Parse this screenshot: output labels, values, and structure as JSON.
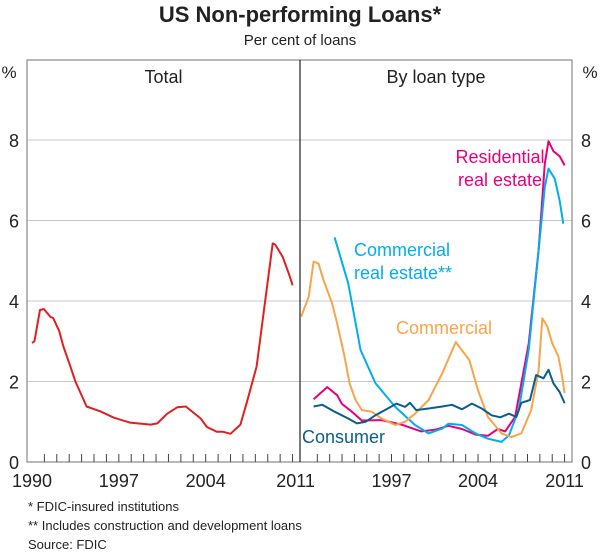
{
  "chart_data": {
    "title": "US Non-performing Loans*",
    "subtitle": "Per cent of loans",
    "type": "line",
    "unit_label": "%",
    "ylim": [
      0,
      9
    ],
    "yticks": [
      0,
      2,
      4,
      6,
      8
    ],
    "xlim": [
      1989.6,
      2011.6
    ],
    "xticks": [
      1990,
      1997,
      2004,
      2011
    ],
    "grid": true,
    "panels": [
      {
        "title": "Total",
        "series": [
          {
            "color": "#e0201f",
            "x": [
              1990.0,
              1990.2,
              1990.65,
              1990.97,
              1991.5,
              1991.7,
              1992.2,
              1992.5,
              1993.1,
              1993.5,
              1994.4,
              1995.5,
              1996.6,
              1997.9,
              1999.55,
              2000.1,
              2000.9,
              2001.7,
              2002.4,
              2003.6,
              2004.1,
              2004.9,
              2005.4,
              2006.0,
              2006.8,
              2007.3,
              2008.1,
              2008.7,
              2009.4,
              2009.6,
              2010.2,
              2010.7,
              2011.0
            ],
            "y": [
              2.96,
              3.0,
              3.78,
              3.8,
              3.6,
              3.58,
              3.25,
              2.9,
              2.37,
              2.0,
              1.38,
              1.26,
              1.1,
              0.98,
              0.93,
              0.96,
              1.2,
              1.36,
              1.38,
              1.08,
              0.87,
              0.75,
              0.75,
              0.7,
              0.93,
              1.46,
              2.37,
              3.78,
              5.43,
              5.4,
              5.1,
              4.68,
              4.39
            ]
          }
        ]
      },
      {
        "title": "By loan type",
        "series": [
          {
            "name": "Residential real estate",
            "label_lines": [
              "Residential",
              "real estate"
            ],
            "color": "#e6007e",
            "x": [
              1990.7,
              1991.8,
              1992.6,
              1993.0,
              1993.8,
              1994.6,
              1996.2,
              1997.8,
              1999.4,
              2000.5,
              2001.6,
              2002.7,
              2003.8,
              2004.8,
              2005.6,
              2006.2,
              2007.0,
              2008.1,
              2008.9,
              2009.4,
              2009.7,
              2010.1,
              2010.6,
              2011.0
            ],
            "y": [
              1.56,
              1.86,
              1.66,
              1.44,
              1.25,
              1.03,
              1.04,
              0.93,
              0.76,
              0.8,
              0.9,
              0.82,
              0.68,
              0.65,
              0.82,
              0.76,
              1.12,
              2.94,
              5.26,
              7.41,
              7.97,
              7.72,
              7.6,
              7.37
            ]
          },
          {
            "name": "Commercial real estate**",
            "label_lines": [
              "Commercial",
              "real estate**"
            ],
            "color": "#00aeef",
            "x": [
              1992.4,
              1993.5,
              1994.5,
              1995.7,
              1997.3,
              1998.9,
              2000.0,
              2001.1,
              2001.6,
              2002.7,
              2003.8,
              2004.8,
              2005.9,
              2006.5,
              2007.3,
              2008.1,
              2008.9,
              2009.4,
              2009.7,
              2010.2,
              2010.6,
              2010.9
            ],
            "y": [
              5.58,
              4.44,
              2.78,
              1.96,
              1.37,
              0.92,
              0.71,
              0.83,
              0.95,
              0.92,
              0.71,
              0.58,
              0.5,
              0.66,
              1.3,
              2.78,
              5.26,
              6.83,
              7.29,
              7.04,
              6.5,
              5.92
            ]
          },
          {
            "name": "Commercial",
            "label_lines": [
              "Commercial"
            ],
            "color": "#f7a54a",
            "x": [
              1989.7,
              1990.3,
              1990.7,
              1991.1,
              1991.5,
              1992.2,
              1992.6,
              1993.2,
              1993.6,
              1994.1,
              1994.6,
              1995.4,
              1996.2,
              1997.3,
              1998.1,
              1998.9,
              2000.0,
              2001.1,
              2002.2,
              2003.3,
              2004.0,
              2004.8,
              2005.9,
              2006.7,
              2007.5,
              2008.3,
              2008.9,
              2009.2,
              2009.6,
              2010.0,
              2010.5,
              2010.8,
              2011.0
            ],
            "y": [
              3.61,
              4.11,
              4.98,
              4.93,
              4.52,
              3.94,
              3.45,
              2.62,
              1.96,
              1.54,
              1.29,
              1.25,
              1.08,
              0.92,
              1.0,
              1.2,
              1.54,
              2.2,
              2.98,
              2.53,
              1.78,
              1.12,
              0.71,
              0.62,
              0.71,
              1.29,
              2.28,
              3.57,
              3.37,
              2.95,
              2.62,
              2.13,
              1.71
            ]
          },
          {
            "name": "Consumer",
            "label_lines": [
              "Consumer"
            ],
            "color": "#0a5e8c",
            "x": [
              1990.7,
              1991.4,
              1992.4,
              1993.5,
              1994.2,
              1994.9,
              1995.7,
              1996.7,
              1997.4,
              1998.1,
              1998.5,
              1999.0,
              2000.0,
              2001.1,
              2001.9,
              2002.7,
              2003.5,
              2004.3,
              2005.1,
              2005.8,
              2006.5,
              2007.1,
              2007.5,
              2008.2,
              2008.7,
              2009.3,
              2009.7,
              2010.1,
              2010.6,
              2011.0
            ],
            "y": [
              1.38,
              1.42,
              1.25,
              1.08,
              0.96,
              1.0,
              1.16,
              1.33,
              1.45,
              1.37,
              1.47,
              1.29,
              1.33,
              1.38,
              1.42,
              1.31,
              1.45,
              1.33,
              1.16,
              1.11,
              1.2,
              1.12,
              1.47,
              1.54,
              2.16,
              2.08,
              2.29,
              1.95,
              1.74,
              1.46
            ]
          }
        ]
      }
    ],
    "footnotes": [
      "*   FDIC-insured institutions",
      "** Includes construction and development loans",
      "Source: FDIC"
    ]
  }
}
